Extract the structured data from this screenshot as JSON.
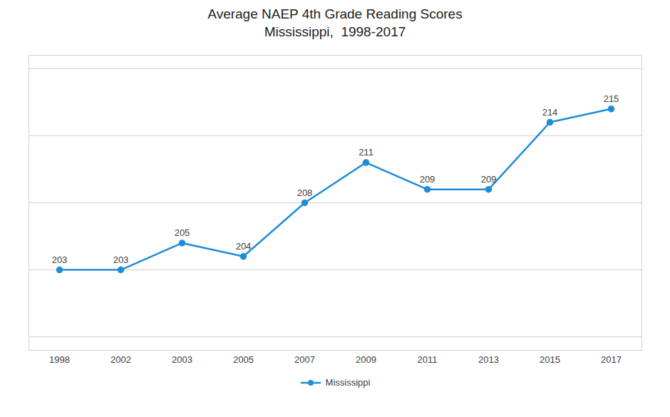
{
  "chart_data": {
    "type": "line",
    "title": "Average NAEP 4th Grade Reading Scores",
    "subtitle": "Mississippi,  1998-2017",
    "categories": [
      "1998",
      "2002",
      "2003",
      "2005",
      "2007",
      "2009",
      "2011",
      "2013",
      "2015",
      "2017"
    ],
    "series": [
      {
        "name": "Mississippi",
        "color": "#1f8dd6",
        "values": [
          203,
          203,
          205,
          204,
          208,
          211,
          209,
          209,
          214,
          215
        ]
      }
    ],
    "ylim": [
      197,
      219
    ],
    "yticks": [
      198,
      203,
      208,
      213,
      218
    ],
    "grid": true,
    "tick_labels": "x",
    "data_labels": true,
    "legend": "bottom",
    "marker": "circle"
  }
}
